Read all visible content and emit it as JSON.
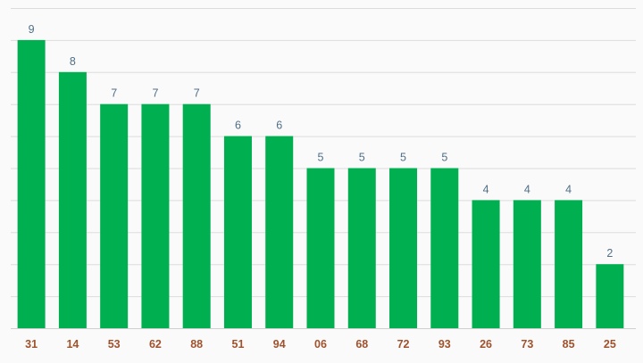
{
  "chart_data": {
    "type": "bar",
    "categories": [
      "31",
      "14",
      "53",
      "62",
      "88",
      "51",
      "94",
      "06",
      "68",
      "72",
      "93",
      "26",
      "73",
      "85",
      "25"
    ],
    "values": [
      9,
      8,
      7,
      7,
      7,
      6,
      6,
      5,
      5,
      5,
      5,
      4,
      4,
      4,
      2
    ],
    "title": "",
    "xlabel": "",
    "ylabel": "",
    "ylim": [
      0,
      10
    ],
    "grid": true,
    "data_labels": true,
    "legend": "none"
  },
  "colors": {
    "bar": "#00b050",
    "value_label": "#4f6f86",
    "tick_label": "#a0522d",
    "grid": "#dcdcdc",
    "background": "#fafafa"
  }
}
